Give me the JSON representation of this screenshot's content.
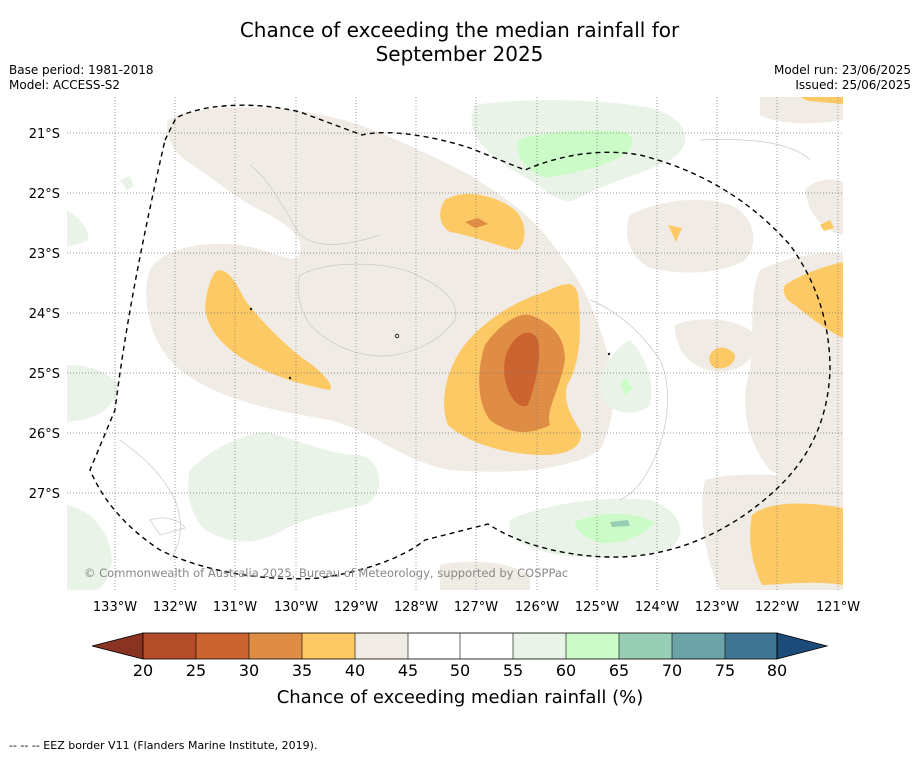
{
  "title": {
    "line1": "Chance of exceeding the median rainfall for",
    "line2": "September 2025"
  },
  "meta": {
    "base_period": "Base period: 1981-2018",
    "model": "Model: ACCESS-S2",
    "model_run": "Model run: 23/06/2025",
    "issued": "Issued: 25/06/2025"
  },
  "map": {
    "copyright": "© Commonwealth of Australia 2025, Bureau of Meteorology, supported by COSPPac",
    "lon_ticks": [
      "133°W",
      "132°W",
      "131°W",
      "130°W",
      "129°W",
      "128°W",
      "127°W",
      "126°W",
      "125°W",
      "124°W",
      "123°W",
      "122°W",
      "121°W"
    ],
    "lat_ticks": [
      "21°S",
      "22°S",
      "23°S",
      "24°S",
      "25°S",
      "26°S",
      "27°S"
    ],
    "grid": true,
    "colors": {
      "c20_25": "#b34c28",
      "c25_30": "#cc6430",
      "c30_35": "#df8c44",
      "c35_40": "#fdc964",
      "c40_45": "#f0ebe4",
      "c45_55": "#ffffff",
      "c55_60": "#e9f3e7",
      "c60_65": "#cbfbc7",
      "c65_70": "#99ceb6",
      "c70_75": "#6ba3a6",
      "c75_80": "#3f7592",
      "under": "#8a3322",
      "over": "#1c4b7a"
    }
  },
  "colorbar": {
    "ticks": [
      "20",
      "25",
      "30",
      "35",
      "40",
      "45",
      "50",
      "55",
      "60",
      "65",
      "70",
      "75",
      "80"
    ],
    "label": "Chance of exceeding median rainfall (%)"
  },
  "footnote": "--  --  -- EEZ border V11 (Flanders Marine Institute, 2019)."
}
